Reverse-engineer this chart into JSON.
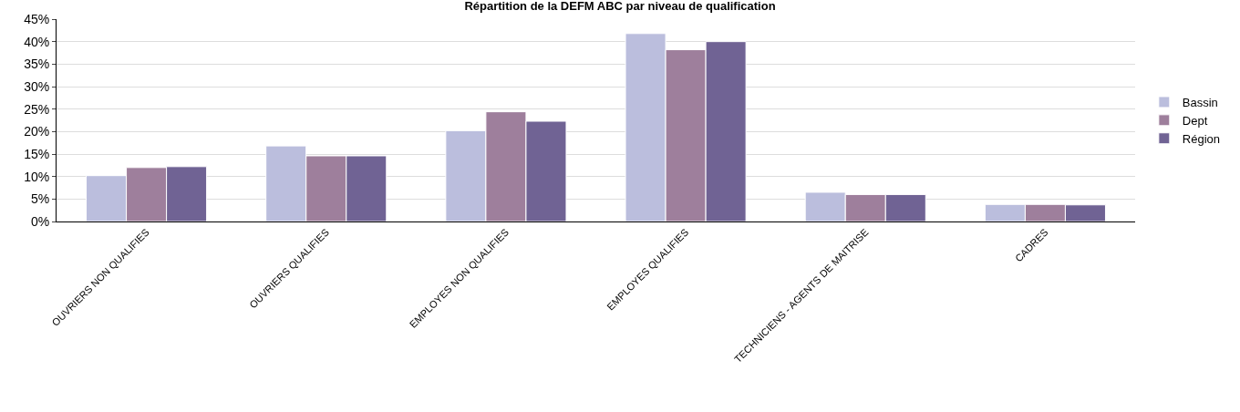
{
  "chart_data": {
    "type": "bar",
    "title": "Répartition de la DEFM ABC par niveau de qualification",
    "categories": [
      "OUVRIERS NON QUALIFIES",
      "OUVRIERS QUALIFIES",
      "EMPLOYES NON QUALIFIES",
      "EMPLOYES QUALIFIES",
      "TECHNICIENS - AGENTS DE MAITRISE",
      "CADRES"
    ],
    "series": [
      {
        "name": "Bassin",
        "color": "#bbbedd",
        "values": [
          10.2,
          16.8,
          20.2,
          41.8,
          6.5,
          3.8
        ]
      },
      {
        "name": "Dept",
        "color": "#9e7f9c",
        "values": [
          12.0,
          14.6,
          24.4,
          38.2,
          6.0,
          3.8
        ]
      },
      {
        "name": "Région",
        "color": "#706394",
        "values": [
          12.2,
          14.6,
          22.3,
          40.0,
          6.0,
          3.7
        ]
      }
    ],
    "ylim": [
      0,
      45
    ],
    "yticks": [
      {
        "value": 0,
        "label": "0%"
      },
      {
        "value": 5,
        "label": "5%"
      },
      {
        "value": 10,
        "label": "10%"
      },
      {
        "value": 15,
        "label": "15%"
      },
      {
        "value": 20,
        "label": "20%"
      },
      {
        "value": 25,
        "label": "25%"
      },
      {
        "value": 30,
        "label": "30%"
      },
      {
        "value": 35,
        "label": "35%"
      },
      {
        "value": 40,
        "label": "40%"
      },
      {
        "value": 45,
        "label": "45%"
      }
    ],
    "grid": "y",
    "legend": "right"
  }
}
